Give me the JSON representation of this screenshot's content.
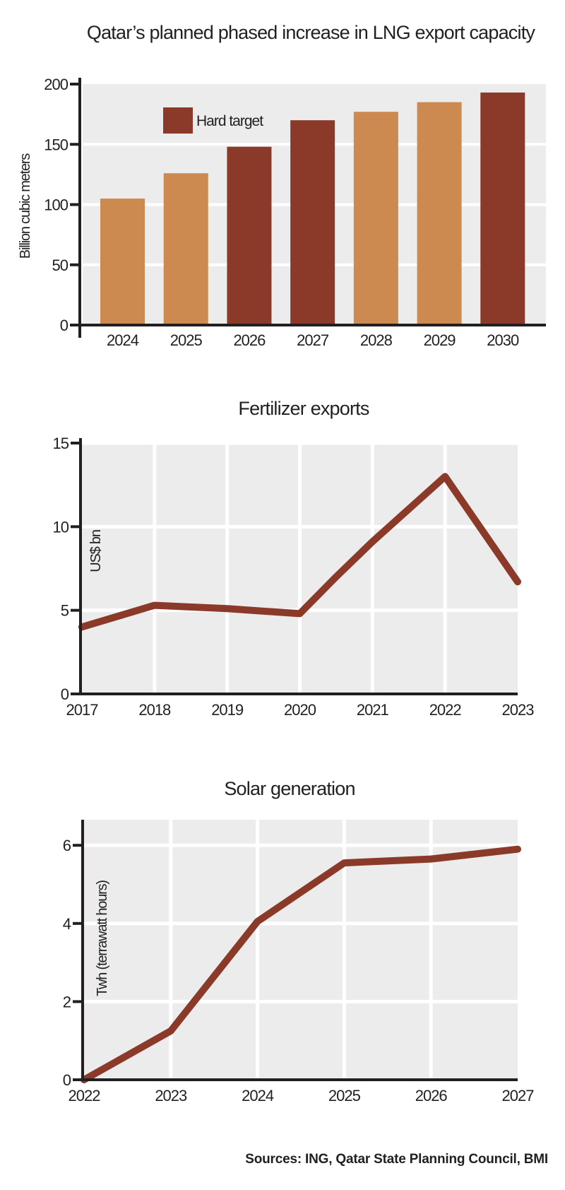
{
  "colors": {
    "hard_target": "#8b3a2a",
    "other": "#cc8a50",
    "line": "#8b3a2a",
    "plot_bg": "#ececec",
    "grid": "#ffffff",
    "axis": "#231f20"
  },
  "source": "Sources: ING, Qatar State Planning Council, BMI",
  "chart_data": [
    {
      "type": "bar",
      "title": "Qatar’s planned phased increase in LNG export capacity",
      "xlabel": "",
      "ylabel": "Billion cubic meters",
      "categories": [
        "2024",
        "2025",
        "2026",
        "2027",
        "2028",
        "2029",
        "2030"
      ],
      "values": [
        105,
        126,
        148,
        170,
        177,
        185,
        193
      ],
      "hard_target": [
        false,
        false,
        true,
        true,
        false,
        false,
        true
      ],
      "ylim": [
        0,
        200
      ],
      "yticks": [
        0,
        50,
        100,
        150,
        200
      ],
      "grid": true,
      "legend": {
        "position": "top-left",
        "entries": [
          {
            "label": "Hard target",
            "color": "#8b3a2a"
          }
        ]
      }
    },
    {
      "type": "line",
      "title": "Fertilizer exports",
      "xlabel": "",
      "ylabel": "US$ bn",
      "xticks": [
        "2017",
        "2018",
        "2019",
        "2020",
        "2021",
        "2022",
        "2023"
      ],
      "x": [
        2017,
        2018,
        2019,
        2020,
        2020.5,
        2021,
        2022,
        2023
      ],
      "series": [
        {
          "name": "Fertilizer exports",
          "values": [
            4.0,
            5.3,
            5.1,
            4.8,
            7.0,
            9.1,
            13.0,
            6.7
          ]
        }
      ],
      "xlim": [
        2017,
        2023
      ],
      "ylim": [
        0,
        15
      ],
      "yticks": [
        0,
        5,
        10,
        15
      ],
      "grid": true
    },
    {
      "type": "line",
      "title": "Solar generation",
      "xlabel": "",
      "ylabel": "Twh (terrawatt hours)",
      "xticks": [
        "2022",
        "2023",
        "2024",
        "2025",
        "2026",
        "2027"
      ],
      "x": [
        2022,
        2023,
        2024,
        2025,
        2026,
        2027
      ],
      "series": [
        {
          "name": "Solar generation",
          "values": [
            0,
            1.25,
            4.05,
            5.55,
            5.65,
            5.9
          ]
        }
      ],
      "xlim": [
        2022,
        2027
      ],
      "ylim": [
        0,
        6.5
      ],
      "yticks": [
        0,
        2,
        4,
        6
      ],
      "grid": true
    }
  ]
}
